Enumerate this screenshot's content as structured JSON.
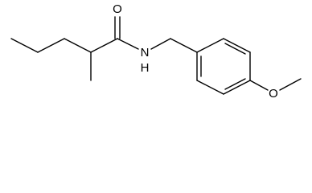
{
  "atoms": [
    {
      "label": "O"
    },
    {
      "label": "N"
    },
    {
      "label": "H"
    },
    {
      "label": "O"
    }
  ]
}
